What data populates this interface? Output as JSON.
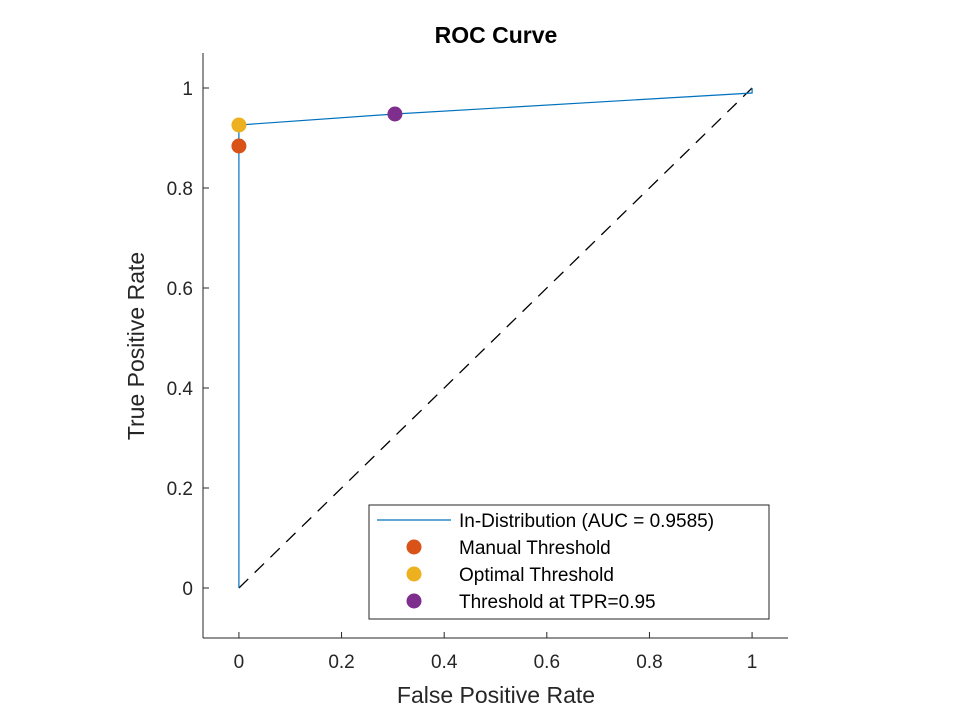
{
  "chart_data": {
    "type": "line",
    "title": "ROC Curve",
    "xlabel": "False Positive Rate",
    "ylabel": "True Positive Rate",
    "xlim": [
      -0.07,
      1.07
    ],
    "ylim": [
      -0.1,
      1.07
    ],
    "xticks": [
      0,
      0.2,
      0.4,
      0.6,
      0.8,
      1
    ],
    "xtick_labels": [
      "0",
      "0.2",
      "0.4",
      "0.6",
      "0.8",
      "1"
    ],
    "yticks": [
      0,
      0.2,
      0.4,
      0.6,
      0.8,
      1
    ],
    "ytick_labels": [
      "0",
      "0.2",
      "0.4",
      "0.6",
      "0.8",
      "1"
    ],
    "grid": false,
    "legend_position": "bottom-right",
    "series": [
      {
        "name": "In-Distribution (AUC = 0.9585)",
        "kind": "line",
        "color": "#0072BD",
        "x": [
          0,
          0,
          0.304,
          1,
          1
        ],
        "y": [
          0,
          0.926,
          0.948,
          0.99,
          1
        ]
      },
      {
        "name": "Manual Threshold",
        "kind": "point",
        "color": "#D95319",
        "x": [
          0
        ],
        "y": [
          0.884
        ]
      },
      {
        "name": "Optimal Threshold",
        "kind": "point",
        "color": "#EDB120",
        "x": [
          0
        ],
        "y": [
          0.926
        ]
      },
      {
        "name": "Threshold at TPR=0.95",
        "kind": "point",
        "color": "#7E2F8E",
        "x": [
          0.304
        ],
        "y": [
          0.948
        ]
      }
    ],
    "reference_line": {
      "name": "chance-diagonal",
      "style": "dashed",
      "color": "#000000",
      "x": [
        0,
        1
      ],
      "y": [
        0,
        1
      ]
    }
  }
}
